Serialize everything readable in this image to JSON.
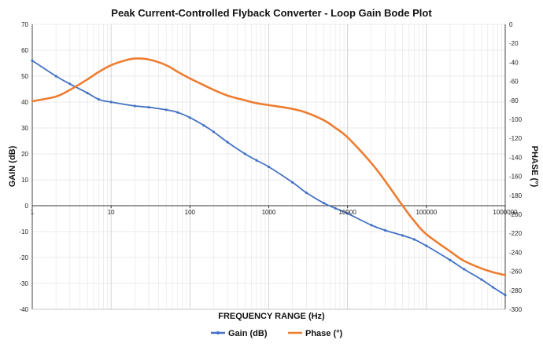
{
  "chart_data": {
    "type": "line",
    "title": "Peak Current-Controlled Flyback Converter - Loop Gain Bode Plot",
    "xlabel": "FREQUENCY RANGE (Hz)",
    "ylabel_left": "GAIN (dB)",
    "ylabel_right": "PHASE (°)",
    "x_scale": "log",
    "xlim": [
      1,
      1000000
    ],
    "ylim_left": [
      -40,
      70
    ],
    "ylim_right": [
      -300,
      0
    ],
    "x_ticks": [
      1,
      10,
      100,
      1000,
      10000,
      100000,
      1000000
    ],
    "x_tick_labels": [
      "1",
      "10",
      "100",
      "1000",
      "10000",
      "100000",
      "1000000"
    ],
    "y_left_ticks": [
      70,
      60,
      50,
      40,
      30,
      20,
      10,
      0,
      -10,
      -20,
      -30,
      -40
    ],
    "y_left_tick_labels": [
      "70",
      "60",
      "50",
      "40",
      "30",
      "20",
      "10",
      "0",
      "-10",
      "-20",
      "-30",
      "-40"
    ],
    "y_right_ticks": [
      0,
      -20,
      -40,
      -60,
      -80,
      -100,
      -120,
      -140,
      -160,
      -180,
      -200,
      -220,
      -240,
      -260,
      -280,
      -300
    ],
    "y_right_tick_labels": [
      "0",
      "-20",
      "-40",
      "-60",
      "-80",
      "-100",
      "-120",
      "-140",
      "-160",
      "-180",
      "-200",
      "-220",
      "-240",
      "-260",
      "-280",
      "-300"
    ],
    "grid": true,
    "legend_position": "bottom-center",
    "series": [
      {
        "name": "Gain (dB)",
        "axis": "left",
        "color": "#4472C4",
        "markers": true,
        "x": [
          1,
          2,
          3,
          5,
          7,
          10,
          20,
          30,
          50,
          70,
          100,
          150,
          200,
          300,
          500,
          700,
          1000,
          2000,
          3000,
          5000,
          7000,
          10000,
          20000,
          30000,
          50000,
          70000,
          100000,
          200000,
          300000,
          500000,
          700000,
          1000000
        ],
        "y": [
          56,
          50,
          47,
          43.5,
          41,
          40,
          38.5,
          38,
          37,
          36,
          34,
          31,
          28.5,
          24.5,
          20,
          17.5,
          15,
          9,
          5,
          1,
          -1,
          -3,
          -7.5,
          -9.5,
          -11.5,
          -13,
          -15.5,
          -21,
          -24.5,
          -28.5,
          -31.5,
          -34.5
        ]
      },
      {
        "name": "Phase (°)",
        "axis": "right",
        "color": "#ED7D31",
        "markers": false,
        "x": [
          1,
          2,
          3,
          5,
          7,
          10,
          15,
          20,
          30,
          50,
          70,
          100,
          150,
          200,
          300,
          500,
          700,
          1000,
          2000,
          3000,
          5000,
          7000,
          10000,
          20000,
          30000,
          50000,
          70000,
          100000,
          200000,
          300000,
          500000,
          700000,
          1000000
        ],
        "y": [
          -81,
          -76,
          -69,
          -58,
          -50,
          -43,
          -38,
          -36,
          -37,
          -43,
          -50,
          -57,
          -64,
          -69,
          -75,
          -80,
          -83,
          -85,
          -89,
          -93,
          -101,
          -109,
          -119,
          -146,
          -165,
          -191,
          -207,
          -221,
          -239,
          -249,
          -257,
          -261,
          -264
        ]
      }
    ]
  }
}
